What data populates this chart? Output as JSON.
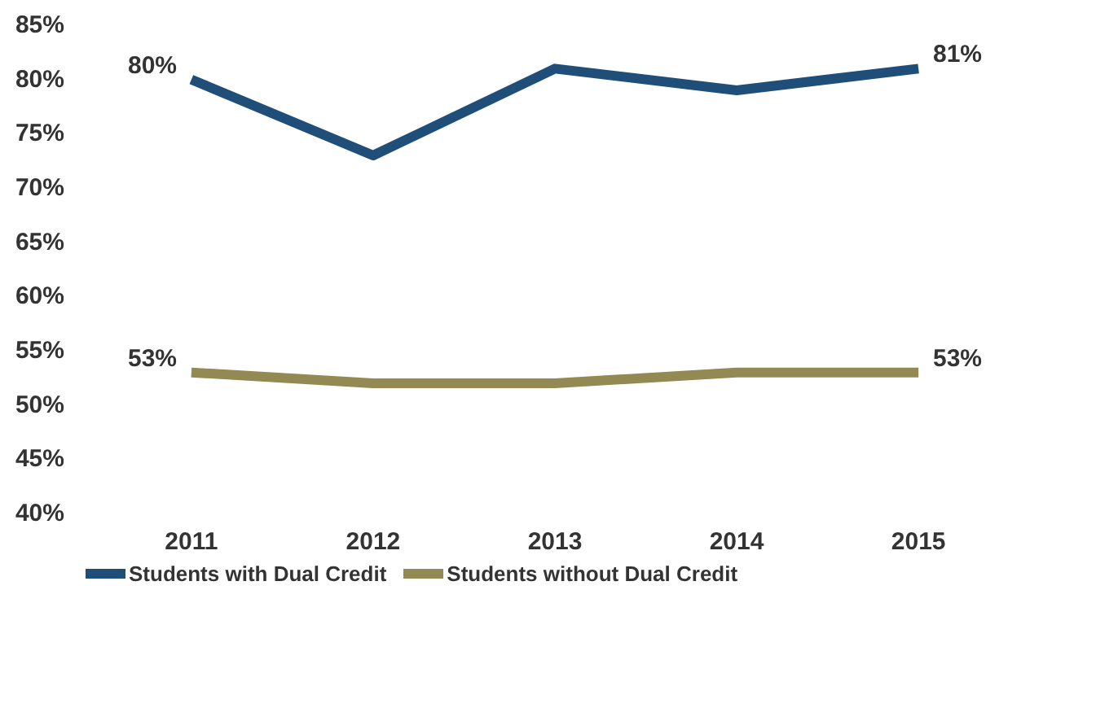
{
  "chart_data": {
    "type": "line",
    "categories": [
      "2011",
      "2012",
      "2013",
      "2014",
      "2015"
    ],
    "series": [
      {
        "name": "Students with Dual Credit",
        "color": "#1f4e79",
        "values": [
          80,
          73,
          81,
          79,
          81
        ],
        "value_labels": [
          "80%",
          null,
          null,
          null,
          "81%"
        ]
      },
      {
        "name": "Students without Dual Credit",
        "color": "#938953",
        "values": [
          53,
          52,
          52,
          53,
          53
        ],
        "value_labels": [
          "53%",
          null,
          null,
          null,
          "53%"
        ]
      }
    ],
    "ylim": [
      40,
      85
    ],
    "yticks": [
      {
        "value": 40,
        "label": "40%"
      },
      {
        "value": 45,
        "label": "45%"
      },
      {
        "value": 50,
        "label": "50%"
      },
      {
        "value": 55,
        "label": "55%"
      },
      {
        "value": 60,
        "label": "60%"
      },
      {
        "value": 65,
        "label": "65%"
      },
      {
        "value": 70,
        "label": "70%"
      },
      {
        "value": 75,
        "label": "75%"
      },
      {
        "value": 80,
        "label": "80%"
      },
      {
        "value": 85,
        "label": "85%"
      }
    ],
    "legend": "bottom",
    "grid": false,
    "marker": "none",
    "line_style": "solid"
  }
}
